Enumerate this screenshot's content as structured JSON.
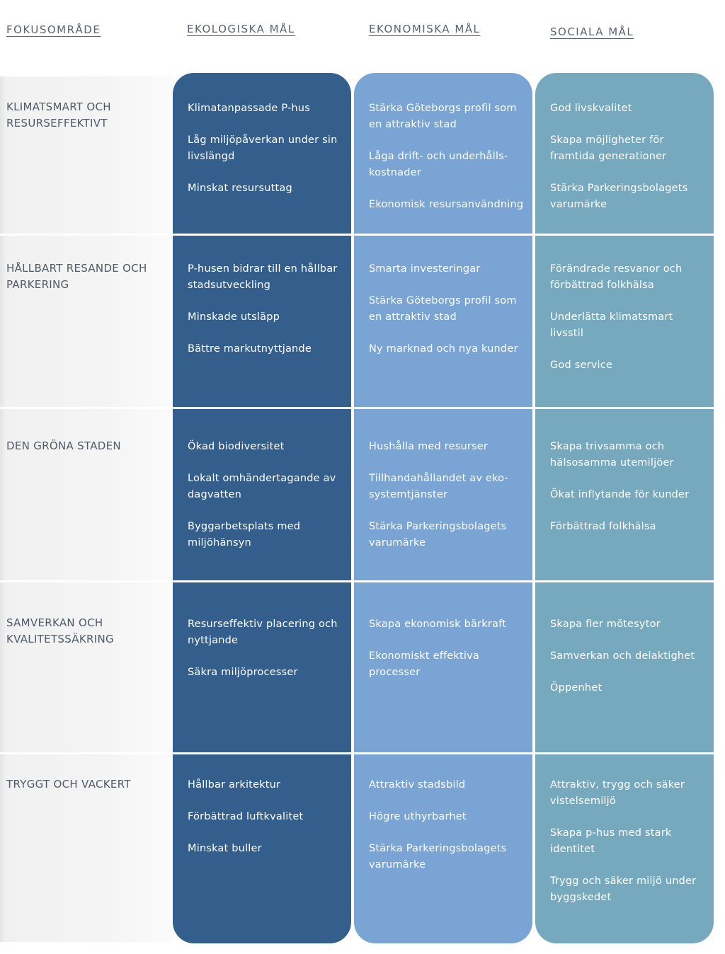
{
  "headers": {
    "fokus": "FOKUSOMRÅDE",
    "ekologiska": "EKOLOGISKA MÅL",
    "ekonomiska": "EKONOMISKA MÅL",
    "sociala": "SOCIALA MÅL"
  },
  "colors": {
    "ekologiska": "#345f8d",
    "ekonomiska": "#7aa4d4",
    "sociala": "#77a9be",
    "text": "#505a66"
  },
  "rows": [
    {
      "focus": "KLIMATSMART OCH RESURSEFFEKTIVT",
      "ekologiska": [
        "Klimatanpassade P-hus",
        "Låg miljöpåverkan under sin livslängd",
        "Minskat resursuttag"
      ],
      "ekonomiska": [
        "Stärka Göteborgs profil som en attraktiv stad",
        "Låga drift- och underhålls-kostnader",
        "Ekonomisk resursanvändning"
      ],
      "sociala": [
        "God livskvalitet",
        "Skapa möjligheter för framtida generationer",
        "Stärka Parkeringsbolagets varumärke"
      ]
    },
    {
      "focus": "HÅLLBART RESANDE OCH PARKERING",
      "ekologiska": [
        "P-husen bidrar till en hållbar stadsutveckling",
        "Minskade utsläpp",
        "Bättre markutnyttjande"
      ],
      "ekonomiska": [
        "Smarta investeringar",
        "Stärka Göteborgs profil som en attraktiv stad",
        "Ny marknad och nya kunder"
      ],
      "sociala": [
        "Förändrade resvanor och förbättrad folkhälsa",
        "Underlätta klimatsmart livsstil",
        "God service"
      ]
    },
    {
      "focus": "DEN GRÖNA STADEN",
      "ekologiska": [
        "Ökad biodiversitet",
        "Lokalt omhändertagande av dagvatten",
        "Byggarbetsplats med miljöhänsyn"
      ],
      "ekonomiska": [
        "Hushålla med resurser",
        "Tillhandahållandet av eko-systemtjänster",
        "Stärka Parkeringsbolagets varumärke"
      ],
      "sociala": [
        "Skapa trivsamma och hälsosamma utemiljöer",
        "Ökat inflytande för kunder",
        "Förbättrad folkhälsa"
      ]
    },
    {
      "focus": "SAMVERKAN OCH KVALITETSSÄKRING",
      "ekologiska": [
        "Resurseffektiv placering och nyttjande",
        "Säkra miljöprocesser"
      ],
      "ekonomiska": [
        "Skapa ekonomisk bärkraft",
        "Ekonomiskt effektiva processer"
      ],
      "sociala": [
        "Skapa fler mötesytor",
        "Samverkan och delaktighet",
        "Öppenhet"
      ]
    },
    {
      "focus": "TRYGGT OCH VACKERT",
      "ekologiska": [
        "Hållbar arkitektur",
        "Förbättrad luftkvalitet",
        "Minskat buller"
      ],
      "ekonomiska": [
        "Attraktiv stadsbild",
        "Högre uthyrbarhet",
        "Stärka Parkeringsbolagets varumärke"
      ],
      "sociala": [
        "Attraktiv, trygg och säker vistelsemiljö",
        "Skapa p-hus med stark identitet",
        "Trygg och säker miljö under byggskedet"
      ]
    }
  ]
}
